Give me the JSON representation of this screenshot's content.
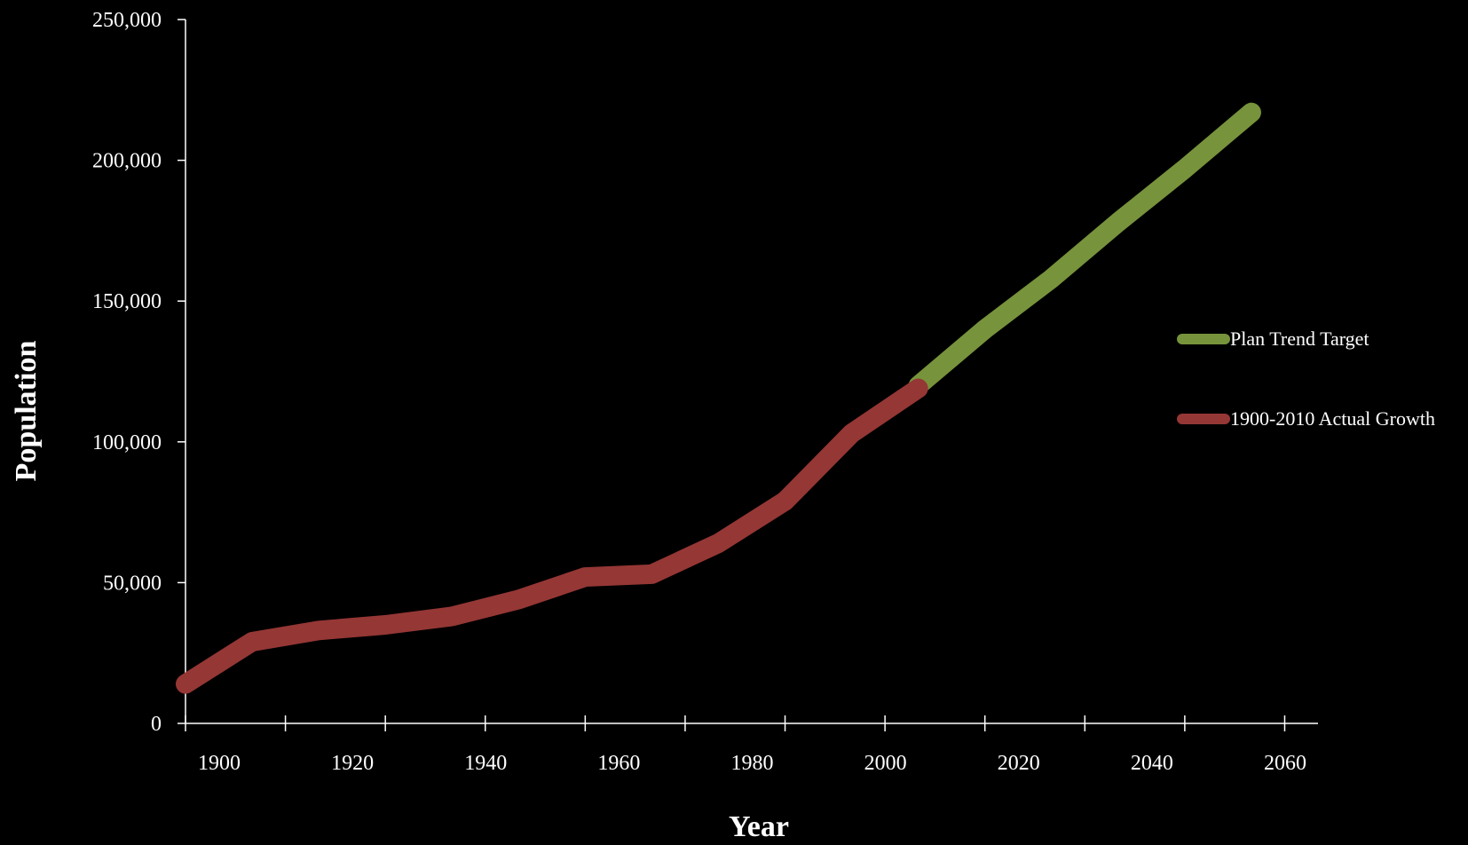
{
  "chart_data": {
    "type": "line",
    "title": "",
    "xlabel": "Year",
    "ylabel": "Population",
    "xlim": [
      1900,
      2070
    ],
    "ylim": [
      0,
      250000
    ],
    "x_ticks": [
      1900,
      1920,
      1940,
      1960,
      1980,
      2000,
      2020,
      2040,
      2060
    ],
    "x_tick_labels": [
      "1900",
      "1920",
      "1940",
      "1960",
      "1980",
      "2000",
      "2020",
      "2040",
      "2060"
    ],
    "y_ticks": [
      0,
      50000,
      100000,
      150000,
      200000,
      250000
    ],
    "y_tick_labels": [
      "0",
      "50,000",
      "100,000",
      "150,000",
      "200,000",
      "250,000"
    ],
    "grid": false,
    "legend_position": "right",
    "series": [
      {
        "name": "Plan Trend Target",
        "color": "#77933c",
        "x": [
          2010,
          2020,
          2030,
          2040,
          2050,
          2060
        ],
        "y": [
          120000,
          140000,
          158000,
          178000,
          197000,
          217000
        ]
      },
      {
        "name": "1900-2010 Actual Growth",
        "color": "#953735",
        "x": [
          1900,
          1910,
          1920,
          1930,
          1940,
          1950,
          1960,
          1970,
          1980,
          1990,
          2000,
          2010
        ],
        "y": [
          14000,
          29000,
          33000,
          35000,
          38000,
          44000,
          52000,
          53000,
          64000,
          79000,
          103000,
          119000
        ]
      }
    ]
  }
}
